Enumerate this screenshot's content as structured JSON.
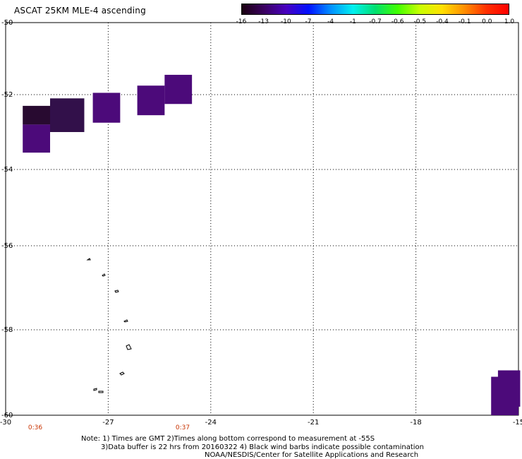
{
  "title": "ASCAT 25KM MLE-4 ascending",
  "colorbar": {
    "ticks": [
      "-16",
      "-13",
      "-10",
      "-7",
      "-4",
      "-1",
      "-0.7",
      "-0.6",
      "-0.5",
      "-0.4",
      "-0.1",
      "0.0",
      "1.0"
    ],
    "gradient_colors": [
      "#1a0010",
      "#3a0060",
      "#4800c0",
      "#0010ff",
      "#0090ff",
      "#00f0f0",
      "#00e070",
      "#40ff00",
      "#c8ff00",
      "#ffe000",
      "#ff9000",
      "#ff3000",
      "#ff0000"
    ]
  },
  "axes": {
    "lat_labels": [
      "-50",
      "-52",
      "-54",
      "-56",
      "-58",
      "-60"
    ],
    "lon_labels": [
      "-30",
      "-27",
      "-24",
      "-21",
      "-18",
      "-15"
    ]
  },
  "times": {
    "first": "0:36",
    "second": "0:37"
  },
  "notes": {
    "line1": "Note: 1) Times are GMT 2)Times along bottom correspond to measurement at -55S",
    "line2": "3)Data buffer is 22 hrs from 20160322 4) Black wind barbs indicate possible contamination",
    "line3": "NOAA/NESDIS/Center for Satellite Applications and Research"
  },
  "data_cells": [
    {
      "lon_min": -29.5,
      "lon_max": -28.7,
      "lat_min": -52.8,
      "lat_max": -52.3,
      "color": "#280a30"
    },
    {
      "lon_min": -29.5,
      "lon_max": -28.7,
      "lat_min": -53.55,
      "lat_max": -52.8,
      "color": "#4c0a7a"
    },
    {
      "lon_min": -28.7,
      "lon_max": -27.7,
      "lat_min": -53.0,
      "lat_max": -52.1,
      "color": "#32104a"
    },
    {
      "lon_min": -27.45,
      "lon_max": -26.65,
      "lat_min": -52.75,
      "lat_max": -51.95,
      "color": "#4c0a7a"
    },
    {
      "lon_min": -26.15,
      "lon_max": -25.35,
      "lat_min": -52.55,
      "lat_max": -51.75,
      "color": "#4c0a7a"
    },
    {
      "lon_min": -25.35,
      "lon_max": -24.55,
      "lat_min": -52.25,
      "lat_max": -51.45,
      "color": "#4c0a7a"
    },
    {
      "lon_min": -15.8,
      "lon_max": -15.0,
      "lat_min": -60.0,
      "lat_max": -59.1,
      "color": "#4c0a7a"
    },
    {
      "lon_min": -15.6,
      "lon_max": -14.95,
      "lat_min": -59.8,
      "lat_max": -58.95,
      "color": "#4c0a7a"
    }
  ]
}
